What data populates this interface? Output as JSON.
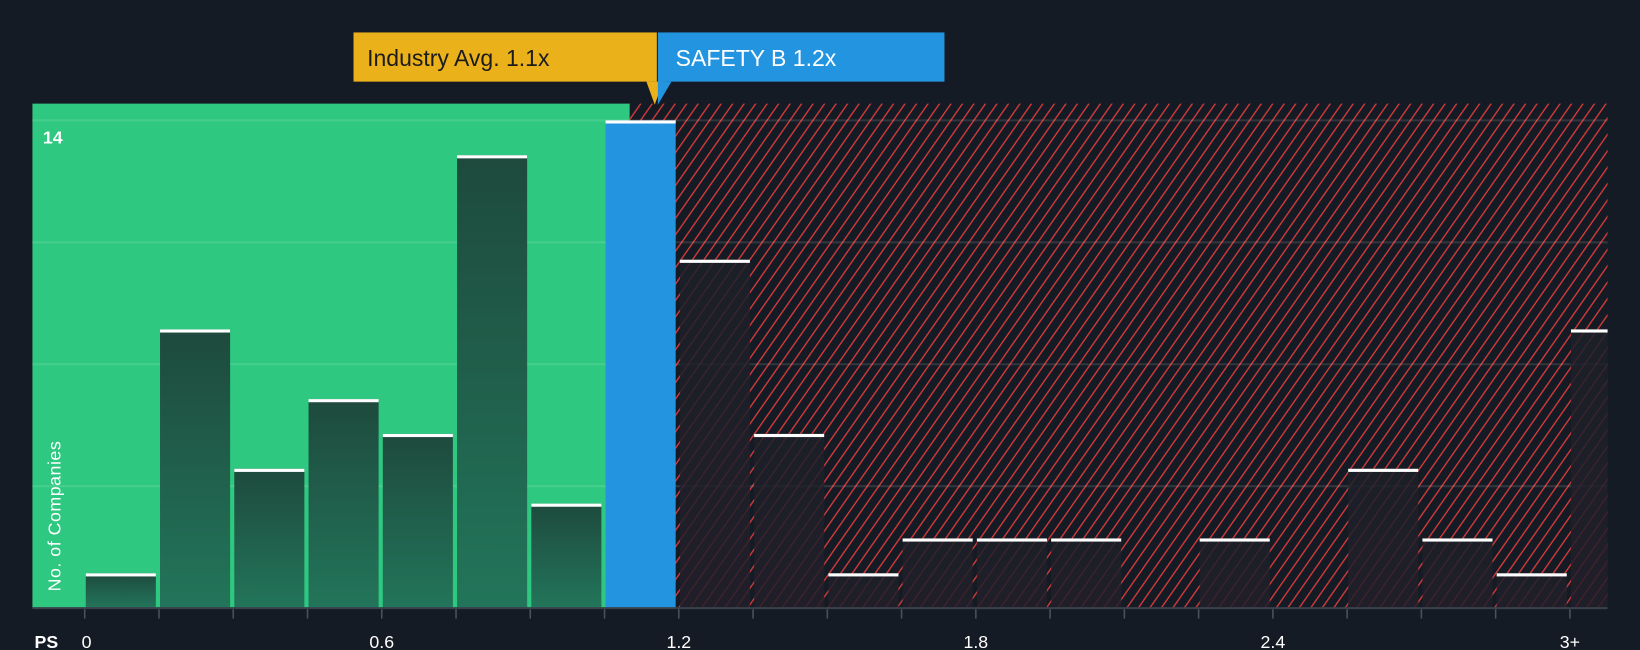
{
  "chart_data": {
    "type": "bar",
    "title": "",
    "xlabel": "PS",
    "ylabel": "No. of Companies",
    "ylim": [
      0,
      14
    ],
    "y_tick_labels": [
      "14"
    ],
    "x_tick_labels": [
      "0",
      "0.6",
      "1.2",
      "1.8",
      "2.4",
      "3+"
    ],
    "bin_width": 0.15,
    "bin_starts": [
      0,
      0.15,
      0.3,
      0.45,
      0.6,
      0.75,
      0.9,
      1.05,
      1.2,
      1.35,
      1.5,
      1.65,
      1.8,
      1.95,
      2.1,
      2.25,
      2.4,
      2.55,
      2.7,
      2.85,
      3.0
    ],
    "values": [
      1,
      8,
      4,
      6,
      5,
      13,
      3,
      14,
      10,
      5,
      1,
      2,
      2,
      2,
      0,
      2,
      0,
      4,
      2,
      1,
      8
    ],
    "highlight_bin": 7,
    "industry_avg": 1.1,
    "company_value": 1.2,
    "grid": true
  },
  "annotations": {
    "industry_label": "Industry Avg. 1.1x",
    "company_label": "SAFETY B 1.2x"
  },
  "colors": {
    "background": "#151b24",
    "fair_zone": "#2ec880",
    "overvalued_hatch": "#d93a3a",
    "company": "#2394e0",
    "industry": "#eab11a"
  }
}
